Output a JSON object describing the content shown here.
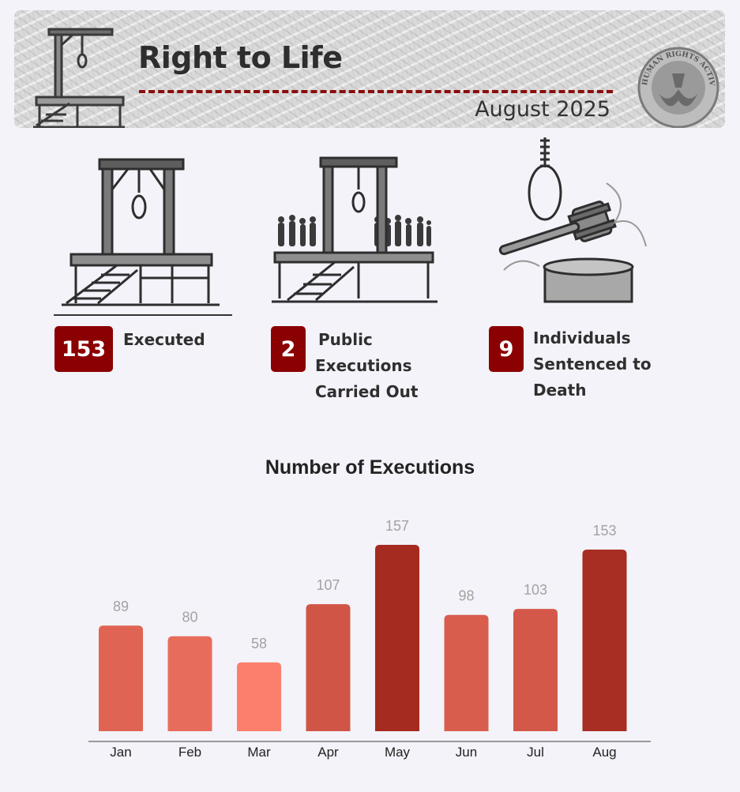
{
  "header": {
    "title": "Right to Life",
    "date": "August 2025",
    "logo_text": "HUMAN RIGHTS ACTIVISTS IN IRAN"
  },
  "stats": [
    {
      "value": "153",
      "label_lines": [
        "Executed"
      ]
    },
    {
      "value": "2",
      "label_lines": [
        "Public",
        "Executions",
        "Carried Out"
      ]
    },
    {
      "value": "9",
      "label_lines": [
        "Individuals",
        "Sentenced to",
        "Death"
      ]
    }
  ],
  "colors": {
    "badge": "#8b0000",
    "rule": "#8a0d0d",
    "bar_light": "#fb7f6c",
    "bar_mid": "#e06a57",
    "bar_dark": "#a52a1f"
  },
  "icons": [
    "gallows-icon",
    "gallows-crowd-icon",
    "noose-gavel-icon",
    "hrai-logo-icon"
  ],
  "chart_data": {
    "type": "bar",
    "title": "Number of Executions",
    "categories": [
      "Jan",
      "Feb",
      "Mar",
      "Apr",
      "May",
      "Jun",
      "Jul",
      "Aug"
    ],
    "values": [
      89,
      80,
      58,
      107,
      157,
      98,
      103,
      153
    ],
    "xlabel": "",
    "ylabel": "",
    "ylim": [
      0,
      157
    ],
    "grid": false,
    "data_labels": true
  }
}
